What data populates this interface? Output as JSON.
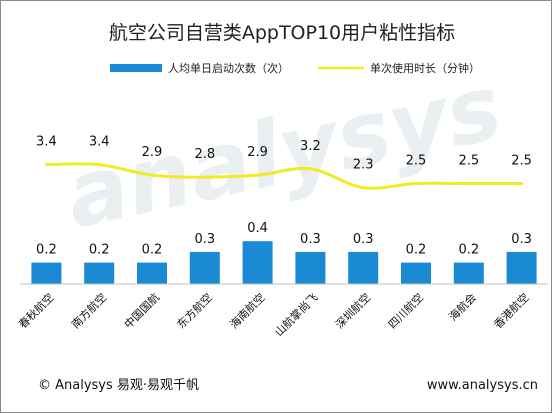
{
  "chart_data": {
    "type": "bar",
    "title": "航空公司自营类AppTOP10用户粘性指标",
    "categories": [
      "春秋航空",
      "南方航空",
      "中国国航",
      "东方航空",
      "海南航空",
      "山航掌尚飞",
      "深圳航空",
      "四川航空",
      "海航会",
      "香港航空"
    ],
    "series": [
      {
        "name": "人均单日启动次数（次）",
        "type": "bar",
        "values": [
          0.2,
          0.2,
          0.2,
          0.3,
          0.4,
          0.3,
          0.3,
          0.2,
          0.2,
          0.3
        ],
        "labels": [
          "0.2",
          "0.2",
          "0.2",
          "0.3",
          "0.4",
          "0.3",
          "0.3",
          "0.2",
          "0.2",
          "0.3"
        ],
        "color": "#1a8ad4"
      },
      {
        "name": "单次使用时长（分钟）",
        "type": "line",
        "values": [
          3.4,
          3.4,
          2.9,
          2.8,
          2.9,
          3.2,
          2.3,
          2.5,
          2.5,
          2.5
        ],
        "labels": [
          "3.4",
          "3.4",
          "2.9",
          "2.8",
          "2.9",
          "3.2",
          "2.3",
          "2.5",
          "2.5",
          "2.5"
        ],
        "color": "#f2ea22"
      }
    ],
    "grid": false,
    "legend": "top"
  },
  "watermark": "analysys",
  "footer": {
    "left": "© Analysys 易观·易观千帆",
    "right": "www.analysys.cn"
  }
}
